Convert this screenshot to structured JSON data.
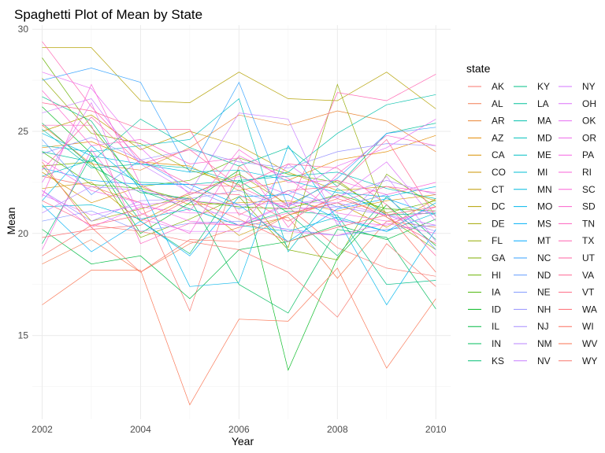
{
  "chart_data": {
    "type": "line",
    "title": "Spaghetti Plot of Mean by State",
    "xlabel": "Year",
    "ylabel": "Mean",
    "xlim": [
      2001.8,
      2010.3
    ],
    "ylim": [
      10.9,
      30.2
    ],
    "x_ticks": [
      2002,
      2004,
      2006,
      2008,
      2010
    ],
    "y_ticks": [
      15,
      20,
      25,
      30
    ],
    "grid": true,
    "legend": {
      "title": "state",
      "position": "right",
      "columns": 3
    },
    "x": [
      2002,
      2003,
      2004,
      2005,
      2006,
      2007,
      2008,
      2009,
      2010
    ],
    "series": [
      {
        "name": "AK",
        "color": "#F8766D",
        "values": [
          22.8,
          22.3,
          21.5,
          16.2,
          23.3,
          21.3,
          19.3,
          18.3,
          17.9
        ]
      },
      {
        "name": "AL",
        "color": "#F27D52",
        "values": [
          18.5,
          19.7,
          18.1,
          19.5,
          20.3,
          20.8,
          17.8,
          20.6,
          20.3
        ]
      },
      {
        "name": "AR",
        "color": "#EA8331",
        "values": [
          25.3,
          23.4,
          23.1,
          24.2,
          25.8,
          25.3,
          26.0,
          25.5,
          24.0
        ]
      },
      {
        "name": "AZ",
        "color": "#E28A00",
        "values": [
          24.2,
          24.5,
          23.5,
          23.3,
          22.1,
          22.6,
          23.6,
          24.0,
          24.8
        ]
      },
      {
        "name": "CA",
        "color": "#D89000",
        "values": [
          23.0,
          21.5,
          22.3,
          21.4,
          21.5,
          21.6,
          21.1,
          21.6,
          21.9
        ]
      },
      {
        "name": "CO",
        "color": "#CD9600",
        "values": [
          22.2,
          22.5,
          20.6,
          21.8,
          19.9,
          20.9,
          21.5,
          20.3,
          21.7
        ]
      },
      {
        "name": "CT",
        "color": "#C09B00",
        "values": [
          25.0,
          25.8,
          24.1,
          25.0,
          24.3,
          23.0,
          22.1,
          22.3,
          21.6
        ]
      },
      {
        "name": "DC",
        "color": "#B3A000",
        "values": [
          29.1,
          29.1,
          26.5,
          26.4,
          27.9,
          26.6,
          26.5,
          27.9,
          26.1
        ]
      },
      {
        "name": "DE",
        "color": "#A3A500",
        "values": [
          23.3,
          20.6,
          21.2,
          21.9,
          22.9,
          21.4,
          22.6,
          20.9,
          21.0
        ]
      },
      {
        "name": "FL",
        "color": "#93AA00",
        "values": [
          27.6,
          24.9,
          24.4,
          23.1,
          22.4,
          19.3,
          27.3,
          20.8,
          19.2
        ]
      },
      {
        "name": "GA",
        "color": "#7FAE00",
        "values": [
          23.3,
          23.5,
          19.8,
          20.7,
          21.8,
          19.2,
          18.7,
          22.9,
          21.3
        ]
      },
      {
        "name": "HI",
        "color": "#68B200",
        "values": [
          28.6,
          25.2,
          22.3,
          22.6,
          23.7,
          22.9,
          22.5,
          21.0,
          21.6
        ]
      },
      {
        "name": "IA",
        "color": "#46B500",
        "values": [
          24.0,
          22.4,
          22.2,
          21.6,
          21.3,
          21.2,
          21.9,
          21.2,
          21.1
        ]
      },
      {
        "name": "ID",
        "color": "#00B81F",
        "values": [
          26.2,
          23.9,
          20.0,
          21.5,
          23.1,
          13.3,
          18.8,
          21.4,
          19.4
        ]
      },
      {
        "name": "IL",
        "color": "#00BA42",
        "values": [
          20.2,
          18.5,
          18.9,
          16.8,
          19.2,
          19.6,
          20.4,
          19.7,
          20.7
        ]
      },
      {
        "name": "IN",
        "color": "#00BC5D",
        "values": [
          25.4,
          23.3,
          22.0,
          21.7,
          17.5,
          16.1,
          20.2,
          19.8,
          16.3
        ]
      },
      {
        "name": "KS",
        "color": "#00BE73",
        "values": [
          19.5,
          23.8,
          20.6,
          19.0,
          22.6,
          21.0,
          18.9,
          21.8,
          19.7
        ]
      },
      {
        "name": "KY",
        "color": "#00BF87",
        "values": [
          26.7,
          25.5,
          22.1,
          21.2,
          20.4,
          21.1,
          20.9,
          17.5,
          17.7
        ]
      },
      {
        "name": "LA",
        "color": "#00C09A",
        "values": [
          24.0,
          23.5,
          25.6,
          24.2,
          23.3,
          24.2,
          22.3,
          24.9,
          25.4
        ]
      },
      {
        "name": "MA",
        "color": "#00C0AB",
        "values": [
          25.1,
          23.2,
          23.4,
          23.2,
          22.5,
          23.0,
          24.9,
          26.3,
          26.8
        ]
      },
      {
        "name": "MD",
        "color": "#00C0BB",
        "values": [
          22.8,
          23.6,
          22.5,
          22.4,
          22.6,
          22.8,
          23.0,
          22.2,
          21.7
        ]
      },
      {
        "name": "ME",
        "color": "#00BFC4",
        "values": [
          24.3,
          24.0,
          24.3,
          24.6,
          26.6,
          19.1,
          22.2,
          20.9,
          21.0
        ]
      },
      {
        "name": "MI",
        "color": "#00BDD4",
        "values": [
          21.3,
          21.4,
          20.7,
          21.2,
          20.4,
          20.1,
          20.8,
          20.1,
          21.0
        ]
      },
      {
        "name": "MN",
        "color": "#00BAE0",
        "values": [
          24.9,
          23.8,
          23.4,
          23.0,
          23.1,
          22.6,
          22.0,
          21.8,
          22.3
        ]
      },
      {
        "name": "MO",
        "color": "#00B6EB",
        "values": [
          21.6,
          24.3,
          22.3,
          17.4,
          17.6,
          24.3,
          20.7,
          16.5,
          20.2
        ]
      },
      {
        "name": "MS",
        "color": "#00B0F6",
        "values": [
          21.4,
          19.1,
          20.6,
          18.9,
          21.8,
          21.9,
          20.7,
          20.1,
          21.5
        ]
      },
      {
        "name": "MT",
        "color": "#00A9FF",
        "values": [
          23.2,
          22.6,
          22.4,
          22.4,
          21.4,
          19.6,
          21.2,
          21.7,
          20.9
        ]
      },
      {
        "name": "NC",
        "color": "#35A2FF",
        "values": [
          27.5,
          28.1,
          27.4,
          23.0,
          27.4,
          21.3,
          22.7,
          24.9,
          25.2
        ]
      },
      {
        "name": "ND",
        "color": "#619CFF",
        "values": [
          24.6,
          21.9,
          23.6,
          22.2,
          21.2,
          22.1,
          21.3,
          21.9,
          19.2
        ]
      },
      {
        "name": "NE",
        "color": "#7E96FF",
        "values": [
          20.6,
          21.1,
          20.1,
          20.5,
          20.6,
          20.2,
          19.9,
          20.2,
          20.4
        ]
      },
      {
        "name": "NH",
        "color": "#9590FF",
        "values": [
          23.9,
          24.7,
          23.6,
          24.1,
          23.5,
          23.2,
          24.0,
          24.4,
          24.3
        ]
      },
      {
        "name": "NJ",
        "color": "#A58AFF",
        "values": [
          22.1,
          20.6,
          21.6,
          21.7,
          22.1,
          21.2,
          21.3,
          20.9,
          20.1
        ]
      },
      {
        "name": "NM",
        "color": "#B983FF",
        "values": [
          21.0,
          22.3,
          22.1,
          21.6,
          20.4,
          21.4,
          21.8,
          22.6,
          21.9
        ]
      },
      {
        "name": "NV",
        "color": "#C77CFF",
        "values": [
          25.9,
          26.6,
          23.4,
          22.0,
          25.9,
          25.6,
          20.4,
          22.8,
          19.6
        ]
      },
      {
        "name": "NY",
        "color": "#D376FF",
        "values": [
          21.9,
          20.9,
          21.4,
          21.6,
          21.4,
          21.5,
          21.5,
          20.9,
          20.4
        ]
      },
      {
        "name": "OH",
        "color": "#DE71F9",
        "values": [
          22.5,
          26.4,
          20.7,
          20.1,
          20.1,
          23.4,
          21.7,
          23.5,
          20.6
        ]
      },
      {
        "name": "OK",
        "color": "#E76BF3",
        "values": [
          27.9,
          27.1,
          24.2,
          21.9,
          22.8,
          21.9,
          23.3,
          24.2,
          25.6
        ]
      },
      {
        "name": "OR",
        "color": "#EE67EA",
        "values": [
          22.1,
          20.3,
          21.3,
          21.0,
          21.0,
          20.1,
          19.9,
          20.5,
          20.0
        ]
      },
      {
        "name": "PA",
        "color": "#F564E3",
        "values": [
          23.6,
          22.1,
          21.5,
          20.6,
          20.4,
          21.5,
          20.6,
          20.4,
          21.3
        ]
      },
      {
        "name": "RI",
        "color": "#F863DA",
        "values": [
          19.2,
          24.1,
          21.0,
          20.0,
          23.8,
          22.7,
          21.0,
          20.6,
          21.1
        ]
      },
      {
        "name": "SC",
        "color": "#FB61D7",
        "values": [
          21.8,
          27.3,
          22.4,
          21.1,
          24.1,
          22.5,
          22.6,
          21.9,
          22.5
        ]
      },
      {
        "name": "SD",
        "color": "#FC61CB",
        "values": [
          27.0,
          24.3,
          24.6,
          23.4,
          23.7,
          20.3,
          22.9,
          24.8,
          24.3
        ]
      },
      {
        "name": "TN",
        "color": "#FD61BE",
        "values": [
          25.3,
          25.3,
          19.5,
          20.5,
          20.4,
          21.0,
          21.5,
          22.3,
          22.0
        ]
      },
      {
        "name": "TX",
        "color": "#FF61B0",
        "values": [
          29.4,
          26.2,
          23.6,
          22.4,
          22.3,
          21.2,
          26.9,
          26.5,
          27.8
        ]
      },
      {
        "name": "UT",
        "color": "#FF62A1",
        "values": [
          23.1,
          25.7,
          23.4,
          24.1,
          22.3,
          23.4,
          23.2,
          21.4,
          18.9
        ]
      },
      {
        "name": "VA",
        "color": "#FF6392",
        "values": [
          26.4,
          26.0,
          25.1,
          25.1,
          20.9,
          22.1,
          22.3,
          24.6,
          20.8
        ]
      },
      {
        "name": "VT",
        "color": "#FF6581",
        "values": [
          21.6,
          20.4,
          20.9,
          22.0,
          21.9,
          20.6,
          21.9,
          20.8,
          19.5
        ]
      },
      {
        "name": "WA",
        "color": "#FF6A70",
        "values": [
          19.8,
          20.2,
          20.4,
          21.7,
          20.7,
          19.6,
          20.3,
          20.9,
          21.3
        ]
      },
      {
        "name": "WI",
        "color": "#FC6E5F",
        "values": [
          23.5,
          20.3,
          18.1,
          19.7,
          19.6,
          20.9,
          21.7,
          21.0,
          18.1
        ]
      },
      {
        "name": "WV",
        "color": "#FA7350",
        "values": [
          16.5,
          18.2,
          18.2,
          11.6,
          15.8,
          15.7,
          18.3,
          13.4,
          16.8
        ]
      },
      {
        "name": "WY",
        "color": "#F8766D",
        "values": [
          18.9,
          20.4,
          20.1,
          19.6,
          19.2,
          18.1,
          15.9,
          19.5,
          17.4
        ]
      }
    ]
  }
}
